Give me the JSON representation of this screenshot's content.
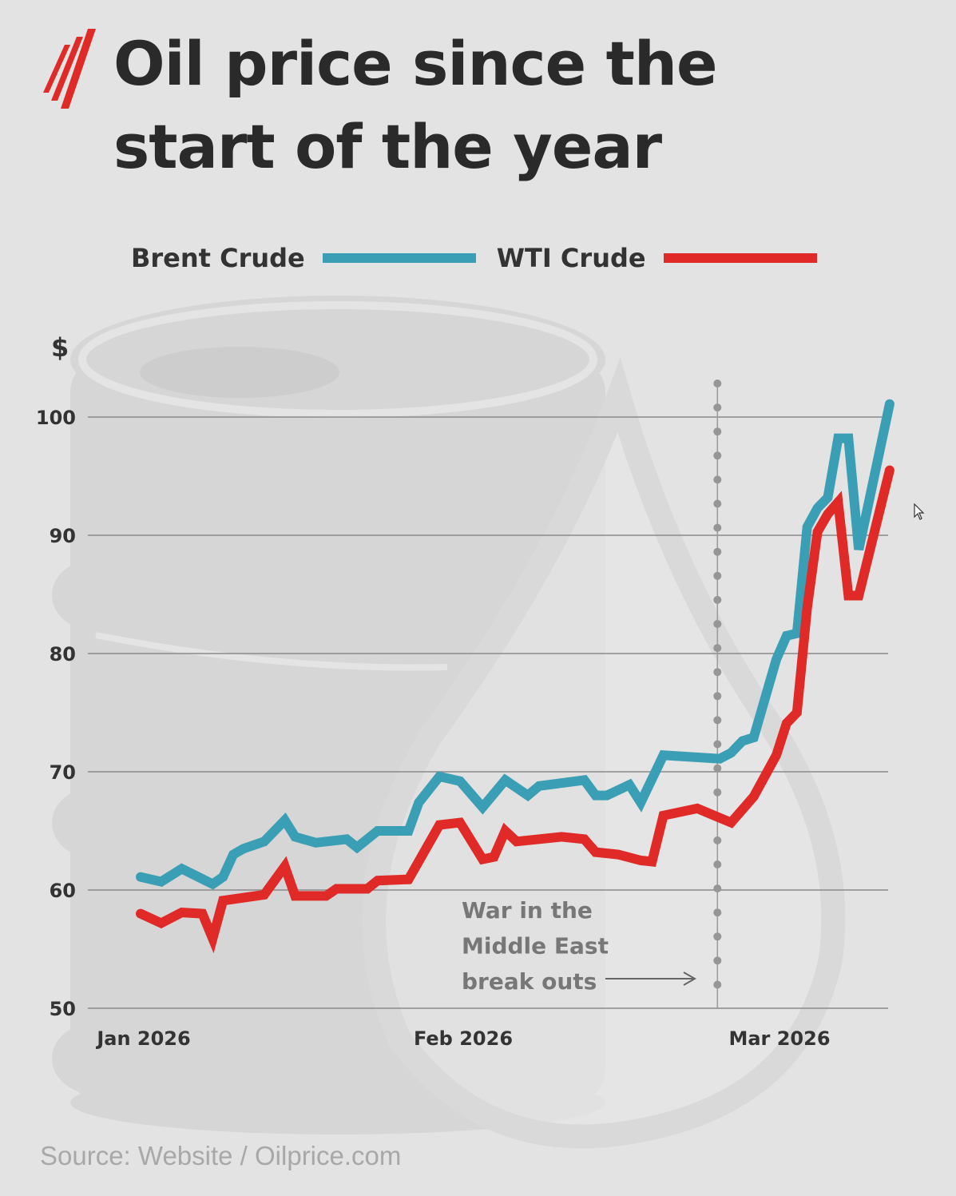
{
  "header": {
    "title_line1": "Oil price since the",
    "title_line2": "start of the year",
    "logo_color": "#e02a27"
  },
  "footer": {
    "source": "Source: Website / Oilprice.com"
  },
  "chart_data": {
    "type": "line",
    "title": "Oil price since the start of the year",
    "ylabel": "$",
    "ylim": [
      50,
      102
    ],
    "yticks": [
      "100",
      "90",
      "80",
      "70",
      "60",
      "50"
    ],
    "ytick_values": [
      100,
      90,
      80,
      70,
      60,
      50
    ],
    "xticks": [
      "Jan 2026",
      "Feb 2026",
      "Mar 2026"
    ],
    "xtick_values": [
      "2026-01-01",
      "2026-02-01",
      "2026-03-01"
    ],
    "grid": true,
    "legend_position": "top",
    "series": [
      {
        "name": "Brent Crude",
        "color": "#3a9fb4",
        "points": [
          [
            "2026-01-01",
            61.1
          ],
          [
            "2026-01-03",
            60.7
          ],
          [
            "2026-01-05",
            61.8
          ],
          [
            "2026-01-08",
            60.5
          ],
          [
            "2026-01-09",
            61.1
          ],
          [
            "2026-01-10",
            63.0
          ],
          [
            "2026-01-11",
            63.5
          ],
          [
            "2026-01-13",
            64.1
          ],
          [
            "2026-01-15",
            65.9
          ],
          [
            "2026-01-16",
            64.5
          ],
          [
            "2026-01-18",
            64.0
          ],
          [
            "2026-01-21",
            64.3
          ],
          [
            "2026-01-22",
            63.6
          ],
          [
            "2026-01-24",
            65.0
          ],
          [
            "2026-01-27",
            65.0
          ],
          [
            "2026-01-28",
            67.4
          ],
          [
            "2026-01-30",
            69.6
          ],
          [
            "2026-02-01",
            69.2
          ],
          [
            "2026-02-03",
            67.0
          ],
          [
            "2026-02-05",
            69.3
          ],
          [
            "2026-02-07",
            68.0
          ],
          [
            "2026-02-08",
            68.8
          ],
          [
            "2026-02-12",
            69.3
          ],
          [
            "2026-02-13",
            68.0
          ],
          [
            "2026-02-14",
            68.0
          ],
          [
            "2026-02-16",
            68.9
          ],
          [
            "2026-02-17",
            67.4
          ],
          [
            "2026-02-18",
            69.4
          ],
          [
            "2026-02-19",
            71.4
          ],
          [
            "2026-02-24",
            71.1
          ],
          [
            "2026-02-25",
            71.6
          ],
          [
            "2026-02-26",
            72.6
          ],
          [
            "2026-02-27",
            72.9
          ],
          [
            "2026-03-01",
            79.5
          ],
          [
            "2026-03-02",
            81.5
          ],
          [
            "2026-03-03",
            81.7
          ],
          [
            "2026-03-04",
            90.7
          ],
          [
            "2026-03-05",
            92.3
          ],
          [
            "2026-03-06",
            93.2
          ],
          [
            "2026-03-07",
            98.2
          ],
          [
            "2026-03-08",
            98.2
          ],
          [
            "2026-03-09",
            88.8
          ],
          [
            "2026-03-12",
            101.1
          ]
        ]
      },
      {
        "name": "WTI Crude",
        "color": "#e02a27",
        "points": [
          [
            "2026-01-01",
            58.0
          ],
          [
            "2026-01-03",
            57.2
          ],
          [
            "2026-01-05",
            58.1
          ],
          [
            "2026-01-07",
            58.0
          ],
          [
            "2026-01-08",
            55.9
          ],
          [
            "2026-01-09",
            59.1
          ],
          [
            "2026-01-13",
            59.6
          ],
          [
            "2026-01-15",
            62.0
          ],
          [
            "2026-01-16",
            59.5
          ],
          [
            "2026-01-19",
            59.5
          ],
          [
            "2026-01-20",
            60.1
          ],
          [
            "2026-01-23",
            60.1
          ],
          [
            "2026-01-24",
            60.8
          ],
          [
            "2026-01-27",
            60.9
          ],
          [
            "2026-01-30",
            65.5
          ],
          [
            "2026-02-01",
            65.7
          ],
          [
            "2026-02-03",
            62.6
          ],
          [
            "2026-02-04",
            62.8
          ],
          [
            "2026-02-05",
            65.0
          ],
          [
            "2026-02-06",
            64.1
          ],
          [
            "2026-02-10",
            64.5
          ],
          [
            "2026-02-12",
            64.3
          ],
          [
            "2026-02-13",
            63.2
          ],
          [
            "2026-02-15",
            63.0
          ],
          [
            "2026-02-17",
            62.5
          ],
          [
            "2026-02-18",
            62.4
          ],
          [
            "2026-02-19",
            66.3
          ],
          [
            "2026-02-22",
            66.9
          ],
          [
            "2026-02-25",
            65.7
          ],
          [
            "2026-02-27",
            67.9
          ],
          [
            "2026-03-01",
            71.4
          ],
          [
            "2026-03-02",
            74.1
          ],
          [
            "2026-03-03",
            75.0
          ],
          [
            "2026-03-04",
            83.9
          ],
          [
            "2026-03-05",
            90.3
          ],
          [
            "2026-03-06",
            91.8
          ],
          [
            "2026-03-07",
            92.8
          ],
          [
            "2026-03-08",
            84.9
          ],
          [
            "2026-03-09",
            84.9
          ],
          [
            "2026-03-12",
            95.5
          ]
        ]
      }
    ],
    "annotations": [
      {
        "x": "2026-02-24",
        "lines": [
          "War in the",
          "Middle East",
          "break outs"
        ]
      }
    ]
  }
}
